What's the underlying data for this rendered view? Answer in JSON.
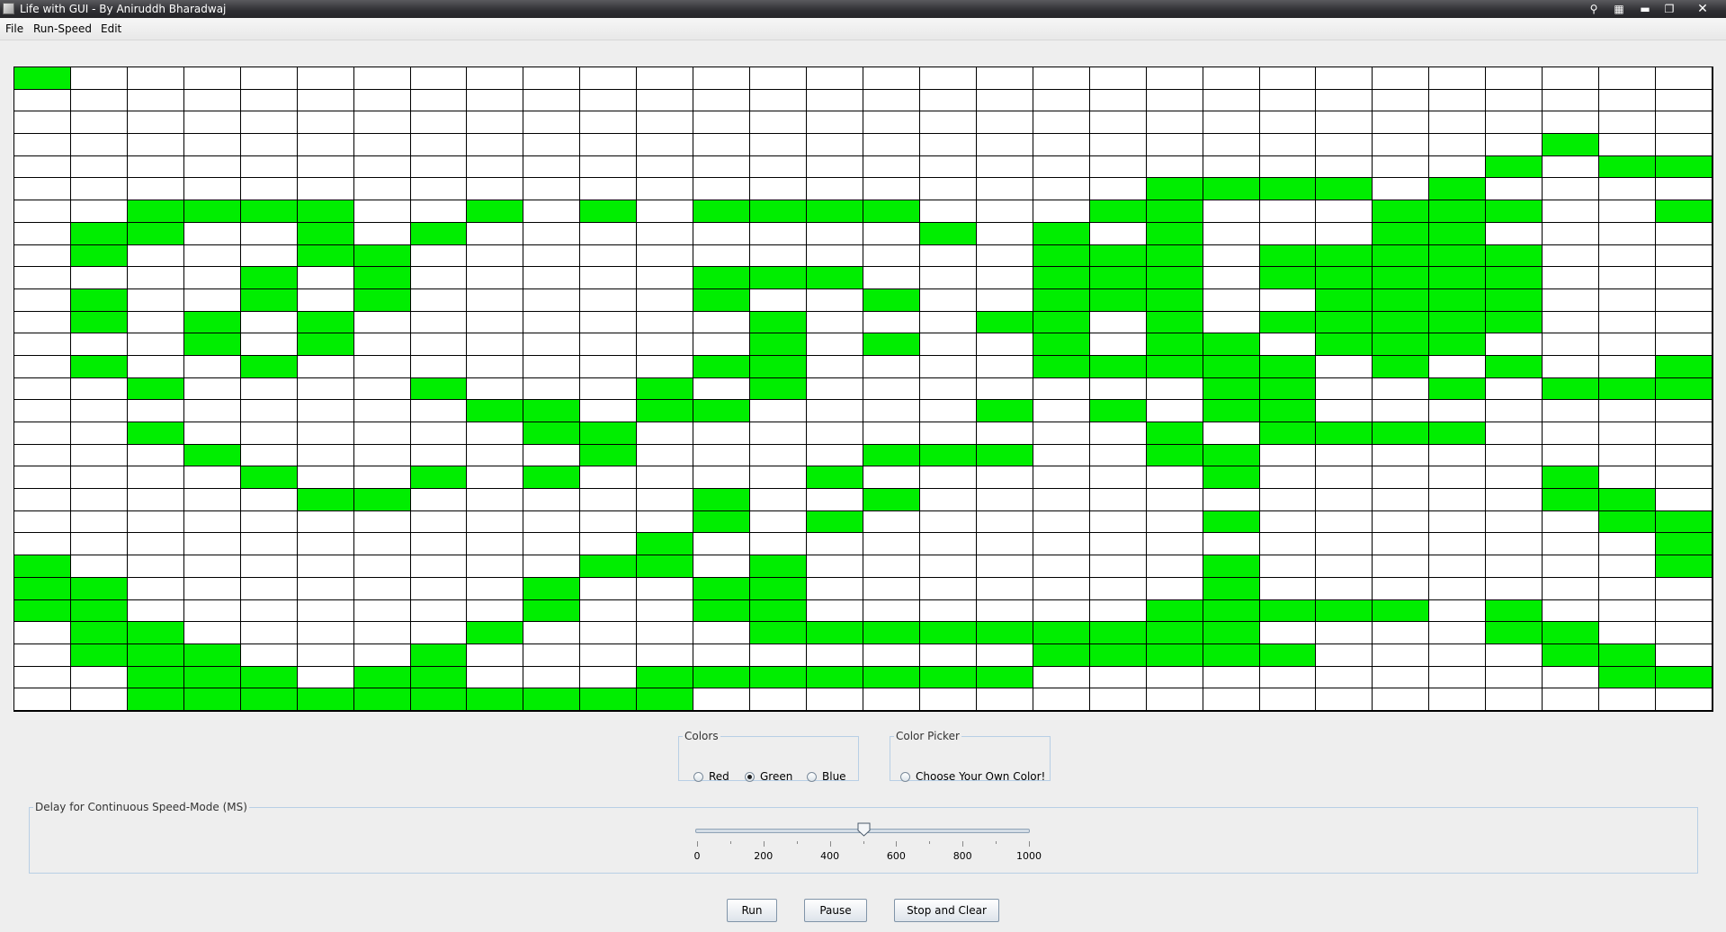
{
  "window": {
    "title": "Life with GUI - By Aniruddh Bharadwaj",
    "controls": [
      "pin-icon",
      "layout-icon",
      "minimize-icon",
      "restore-icon",
      "close-icon"
    ]
  },
  "menu": [
    "File",
    "Run-Speed",
    "Edit"
  ],
  "grid": {
    "cols": 30,
    "rows": 29,
    "live_color": "#00ee00",
    "dead_color": "#ffffff",
    "rows_data": [
      "100000000000000000000000000000",
      "000000000000000000000000000000",
      "000000000000000000000000000000",
      "000000000000000000000000000100",
      "000000000000000000000000001011",
      "000000000000000000001111010000",
      "001111001010111100011000111001",
      "011001010000000010101000110000",
      "010001100000000000111011111000",
      "000010100000111000111011111000",
      "010010100000100100111001111000",
      "010101000000010001101011111000",
      "000101000000010100101101110000",
      "010010000000110000111110101001",
      "001000010001010000000110010111",
      "000000001101100001010110000000",
      "001000000110000000001011110000",
      "000100000010000111001100000000",
      "000010010100001000000100000100",
      "000001100000100100000000000110",
      "000000000000101000000100000011",
      "000000000001000000000000000001",
      "100000000011010000000100000001",
      "110000000100110000000100000000",
      "110000000100110000001111101000",
      "011000001000011111111100001100",
      "011100010000000000111110000110",
      "001110110001111111000000000011",
      "001111111111000000000000000000"
    ]
  },
  "colors_group": {
    "title": "Colors",
    "options": [
      "Red",
      "Green",
      "Blue"
    ],
    "selected": "Green"
  },
  "picker_group": {
    "title": "Color Picker",
    "option": "Choose Your Own Color!"
  },
  "delay_group": {
    "title": "Delay for Continuous Speed-Mode (MS)",
    "min": 0,
    "max": 1000,
    "value": 500,
    "tick_labels": [
      "0",
      "200",
      "400",
      "600",
      "800",
      "1000"
    ]
  },
  "buttons": {
    "run": "Run",
    "pause": "Pause",
    "stop_clear": "Stop and Clear"
  }
}
